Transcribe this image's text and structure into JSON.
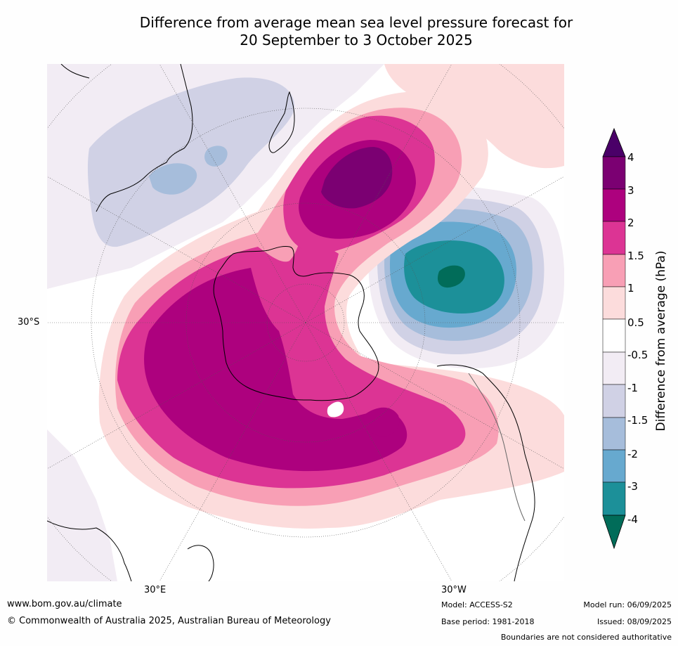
{
  "title": {
    "line1": "Difference from average mean sea level pressure forecast for",
    "line2": "20 September to 3 October 2025"
  },
  "map_labels": {
    "lat_30s": "30°S",
    "lon_30e": "30°E",
    "lon_30w": "30°W"
  },
  "colorbar": {
    "title": "Difference from average (hPa)",
    "ticks": [
      "4",
      "3",
      "2",
      "1.5",
      "1",
      "0.5",
      "-0.5",
      "-1",
      "-1.5",
      "-2",
      "-3",
      "-4"
    ],
    "colors": {
      "gt4": "#4a0068",
      "c3_4": "#7b0072",
      "c2_3": "#ad017e",
      "c15_2": "#dc3494",
      "c1_15": "#f89fb5",
      "c05_1": "#fcdcdc",
      "neutral": "#ffffff",
      "n05_1": "#f2ecf4",
      "n1_15": "#d0d1e5",
      "n15_2": "#a6bddb",
      "n2_3": "#67a9cf",
      "n3_4": "#1c9099",
      "lt4": "#016c59"
    }
  },
  "footer": {
    "website": "www.bom.gov.au/climate",
    "copyright": "© Commonwealth of Australia 2025, Australian Bureau of Meteorology",
    "model": "Model: ACCESS-S2",
    "base_period": "Base period: 1981-2018",
    "model_run": "Model run: 06/09/2025",
    "issued": "Issued: 08/09/2025",
    "disclaimer": "Boundaries are not considered authoritative"
  }
}
